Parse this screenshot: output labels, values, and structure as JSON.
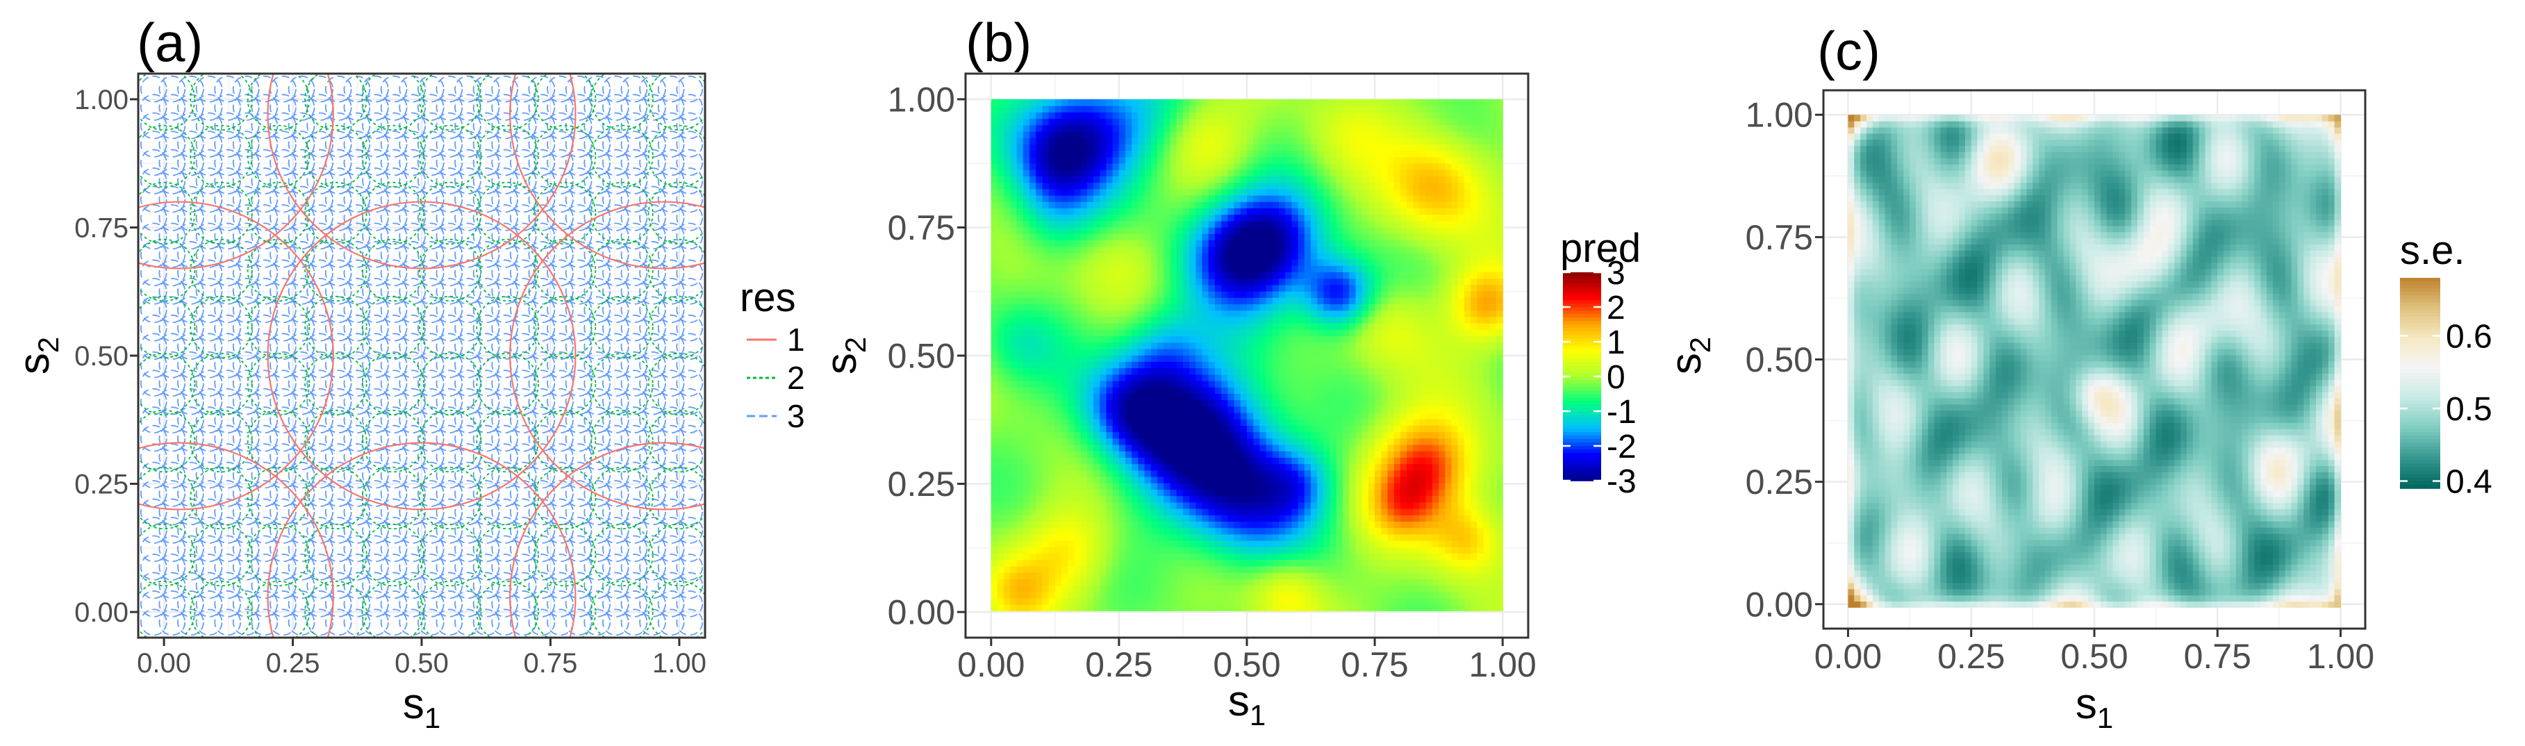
{
  "figure": {
    "panels": [
      "(a)",
      "(b)",
      "(c)"
    ]
  },
  "chart_data": [
    {
      "panel": "(a)",
      "type": "line",
      "title": "(a)",
      "xlabel": "s",
      "xlabel_sub": "1",
      "ylabel": "s",
      "ylabel_sub": "2",
      "xlim": [
        -0.05,
        1.05
      ],
      "ylim": [
        -0.05,
        1.05
      ],
      "xticks": [
        "0.00",
        "0.25",
        "0.50",
        "0.75",
        "1.00"
      ],
      "yticks": [
        "0.00",
        "0.25",
        "0.50",
        "0.75",
        "1.00"
      ],
      "xtick_values": [
        0,
        0.25,
        0.5,
        0.75,
        1
      ],
      "ytick_values": [
        0,
        0.25,
        0.5,
        0.75,
        1
      ],
      "legend": {
        "title": "res",
        "entries": [
          {
            "label": "1",
            "color": "#f8766d",
            "style": "solid"
          },
          {
            "label": "2",
            "color": "#00ba38",
            "style": "dotted"
          },
          {
            "label": "3",
            "color": "#619cff",
            "style": "dashed"
          }
        ]
      },
      "series": [
        {
          "name": "1",
          "grid": [
            0.03,
            0.5,
            0.97
          ],
          "circle_radius": 0.3,
          "color": "#f8766d"
        },
        {
          "name": "2",
          "grid_n": 10,
          "grid_from": 0.0,
          "grid_to": 1.0,
          "circle_radius": 0.06,
          "color": "#00ba38"
        },
        {
          "name": "3",
          "grid_n": 30,
          "grid_from": -0.02,
          "grid_to": 1.02,
          "circle_radius": 0.025,
          "color": "#619cff"
        }
      ]
    },
    {
      "panel": "(b)",
      "type": "heatmap",
      "title": "(b)",
      "xlabel": "s",
      "xlabel_sub": "1",
      "ylabel": "s",
      "ylabel_sub": "2",
      "xlim": [
        -0.05,
        1.05
      ],
      "ylim": [
        -0.05,
        1.05
      ],
      "xticks": [
        "0.00",
        "0.25",
        "0.50",
        "0.75",
        "1.00"
      ],
      "yticks": [
        "0.00",
        "0.25",
        "0.50",
        "0.75",
        "1.00"
      ],
      "xtick_values": [
        0,
        0.25,
        0.5,
        0.75,
        1
      ],
      "ytick_values": [
        0,
        0.25,
        0.5,
        0.75,
        1
      ],
      "colorbar": {
        "title": "pred",
        "range": [
          -3,
          3
        ],
        "ticks": [
          3,
          2,
          1,
          0,
          -1,
          -2,
          -3
        ],
        "tick_labels": [
          "3",
          "2",
          "1",
          "0",
          "-1",
          "-2",
          "-3"
        ],
        "palette": [
          "#00008b",
          "#0000ff",
          "#00bfff",
          "#00ff7f",
          "#adff2f",
          "#ffff00",
          "#ffa500",
          "#ff0000",
          "#8b0000"
        ]
      },
      "field": {
        "base": -0.15,
        "features": [
          {
            "x": 0.17,
            "y": 0.93,
            "amp": -2.4,
            "r": 0.08
          },
          {
            "x": 0.12,
            "y": 0.87,
            "amp": -1.0,
            "r": 0.06
          },
          {
            "x": 0.3,
            "y": 0.96,
            "amp": -0.6,
            "r": 0.08
          },
          {
            "x": 0.49,
            "y": 0.7,
            "amp": -2.6,
            "r": 0.08
          },
          {
            "x": 0.57,
            "y": 0.73,
            "amp": -1.2,
            "r": 0.07
          },
          {
            "x": 0.68,
            "y": 0.62,
            "amp": -2.2,
            "r": 0.05
          },
          {
            "x": 0.4,
            "y": 0.35,
            "amp": -2.6,
            "r": 0.1
          },
          {
            "x": 0.27,
            "y": 0.4,
            "amp": -1.8,
            "r": 0.07
          },
          {
            "x": 0.34,
            "y": 0.52,
            "amp": -1.0,
            "r": 0.06
          },
          {
            "x": 0.5,
            "y": 0.22,
            "amp": -2.0,
            "r": 0.09
          },
          {
            "x": 0.6,
            "y": 0.25,
            "amp": -0.9,
            "r": 0.05
          },
          {
            "x": 0.12,
            "y": 0.77,
            "amp": -0.8,
            "r": 0.06
          },
          {
            "x": 0.05,
            "y": 0.52,
            "amp": -0.7,
            "r": 0.06
          },
          {
            "x": 0.85,
            "y": 0.28,
            "amp": 2.3,
            "r": 0.07
          },
          {
            "x": 0.8,
            "y": 0.2,
            "amp": 1.0,
            "r": 0.05
          },
          {
            "x": 0.93,
            "y": 0.14,
            "amp": 1.3,
            "r": 0.05
          },
          {
            "x": 0.87,
            "y": 0.83,
            "amp": 1.5,
            "r": 0.07
          },
          {
            "x": 0.97,
            "y": 0.6,
            "amp": 1.6,
            "r": 0.05
          },
          {
            "x": 0.15,
            "y": 0.12,
            "amp": 1.0,
            "r": 0.06
          },
          {
            "x": 0.05,
            "y": 0.04,
            "amp": 1.1,
            "r": 0.05
          },
          {
            "x": 0.58,
            "y": 0.03,
            "amp": 1.0,
            "r": 0.05
          },
          {
            "x": 0.42,
            "y": 0.92,
            "amp": 0.8,
            "r": 0.06
          },
          {
            "x": 0.25,
            "y": 0.68,
            "amp": 0.6,
            "r": 0.06
          },
          {
            "x": 0.78,
            "y": 0.55,
            "amp": 0.7,
            "r": 0.06
          },
          {
            "x": 0.7,
            "y": 0.93,
            "amp": 0.5,
            "r": 0.06
          }
        ]
      }
    },
    {
      "panel": "(c)",
      "type": "heatmap",
      "title": "(c)",
      "xlabel": "s",
      "xlabel_sub": "1",
      "ylabel": "s",
      "ylabel_sub": "2",
      "xlim": [
        -0.05,
        1.05
      ],
      "ylim": [
        -0.05,
        1.05
      ],
      "xticks": [
        "0.00",
        "0.25",
        "0.50",
        "0.75",
        "1.00"
      ],
      "yticks": [
        "0.00",
        "0.25",
        "0.50",
        "0.75",
        "1.00"
      ],
      "xtick_values": [
        0,
        0.25,
        0.5,
        0.75,
        1
      ],
      "ytick_values": [
        0,
        0.25,
        0.5,
        0.75,
        1
      ],
      "colorbar": {
        "title": "s.e.",
        "range": [
          0.39,
          0.68
        ],
        "ticks": [
          0.6,
          0.5,
          0.4
        ],
        "tick_labels": [
          "0.6",
          "0.5",
          "0.4"
        ],
        "palette": [
          "#01665e",
          "#35978f",
          "#80cdc1",
          "#c7eae5",
          "#f5f5f5",
          "#f6e8c3",
          "#dfc27d",
          "#bf812d"
        ]
      },
      "field": {
        "base": 0.47,
        "edge_boost": 0.11,
        "corner_boost": 0.12,
        "wave_amp": 0.035,
        "features": [
          {
            "x": 0.5,
            "y": 0.43,
            "amp": 0.09,
            "r": 0.04
          },
          {
            "x": 0.6,
            "y": 0.7,
            "amp": 0.08,
            "r": 0.05
          },
          {
            "x": 0.28,
            "y": 0.9,
            "amp": 0.07,
            "r": 0.05
          },
          {
            "x": 0.73,
            "y": 0.58,
            "amp": 0.06,
            "r": 0.05
          },
          {
            "x": 0.1,
            "y": 0.25,
            "amp": 0.06,
            "r": 0.05
          },
          {
            "x": 0.4,
            "y": 0.18,
            "amp": 0.05,
            "r": 0.05
          },
          {
            "x": 0.88,
            "y": 0.3,
            "amp": 0.05,
            "r": 0.05
          }
        ]
      }
    }
  ]
}
